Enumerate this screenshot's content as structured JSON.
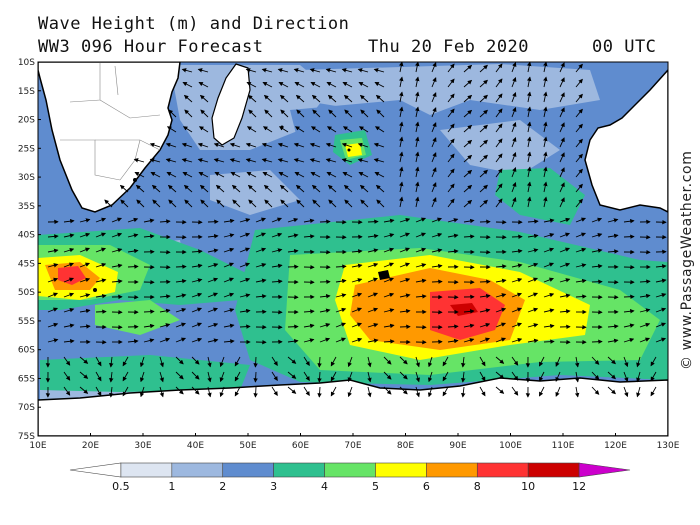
{
  "header": {
    "title_line1": "Wave Height (m) and Direction",
    "title_line2": "WW3 096 Hour Forecast",
    "datetime": "Thu 20 Feb 2020",
    "utc": "00 UTC"
  },
  "watermark": "© www.PassageWeather.com",
  "map": {
    "lat_labels": [
      "10S",
      "15S",
      "20S",
      "25S",
      "30S",
      "35S",
      "40S",
      "45S",
      "50S",
      "55S",
      "60S",
      "65S",
      "70S",
      "75S"
    ],
    "lon_labels": [
      "10E",
      "20E",
      "30E",
      "40E",
      "50E",
      "60E",
      "70E",
      "80E",
      "90E",
      "100E",
      "110E",
      "120E",
      "130E"
    ],
    "lat_range_deg": [
      -10,
      -75
    ],
    "lon_range_deg": [
      10,
      130
    ]
  },
  "legend": {
    "labels": [
      "0.5",
      "1",
      "2",
      "3",
      "4",
      "5",
      "6",
      "8",
      "10",
      "12"
    ],
    "colors": [
      "#ffffff",
      "#dde5f1",
      "#9db8df",
      "#5f8ccf",
      "#2fc08f",
      "#66e466",
      "#ffff00",
      "#ff9900",
      "#ff3333",
      "#cc0000",
      "#cc00cc"
    ]
  },
  "colors": {
    "ocean_low": "#5f8ccf",
    "ocean_calm": "#9db8df",
    "land": "#ffffff",
    "coast": "#000000"
  }
}
